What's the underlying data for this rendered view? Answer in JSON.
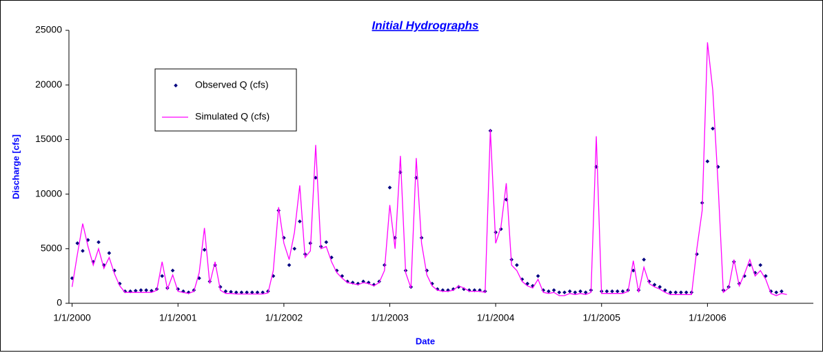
{
  "chart_data": {
    "type": "line",
    "title": "Initial Hydrographs",
    "x_label": "Date",
    "y_label": "Discharge [cfs]",
    "x": [
      2000.0,
      2000.05,
      2000.1,
      2000.15,
      2000.2,
      2000.25,
      2000.3,
      2000.35,
      2000.4,
      2000.45,
      2000.5,
      2000.55,
      2000.6,
      2000.65,
      2000.7,
      2000.75,
      2000.8,
      2000.85,
      2000.9,
      2000.95,
      2001.0,
      2001.05,
      2001.1,
      2001.15,
      2001.2,
      2001.25,
      2001.3,
      2001.35,
      2001.4,
      2001.45,
      2001.5,
      2001.55,
      2001.6,
      2001.65,
      2001.7,
      2001.75,
      2001.8,
      2001.85,
      2001.9,
      2001.95,
      2002.0,
      2002.05,
      2002.1,
      2002.15,
      2002.2,
      2002.25,
      2002.3,
      2002.35,
      2002.4,
      2002.45,
      2002.5,
      2002.55,
      2002.6,
      2002.65,
      2002.7,
      2002.75,
      2002.8,
      2002.85,
      2002.9,
      2002.95,
      2003.0,
      2003.05,
      2003.1,
      2003.15,
      2003.2,
      2003.25,
      2003.3,
      2003.35,
      2003.4,
      2003.45,
      2003.5,
      2003.55,
      2003.6,
      2003.65,
      2003.7,
      2003.75,
      2003.8,
      2003.85,
      2003.9,
      2003.95,
      2004.0,
      2004.05,
      2004.1,
      2004.15,
      2004.2,
      2004.25,
      2004.3,
      2004.35,
      2004.4,
      2004.45,
      2004.5,
      2004.55,
      2004.6,
      2004.65,
      2004.7,
      2004.75,
      2004.8,
      2004.85,
      2004.9,
      2004.95,
      2005.0,
      2005.05,
      2005.1,
      2005.15,
      2005.2,
      2005.25,
      2005.3,
      2005.35,
      2005.4,
      2005.45,
      2005.5,
      2005.55,
      2005.6,
      2005.65,
      2005.7,
      2005.75,
      2005.8,
      2005.85,
      2005.9,
      2005.95,
      2006.0,
      2006.05,
      2006.1,
      2006.15,
      2006.2,
      2006.25,
      2006.3,
      2006.35,
      2006.4,
      2006.45,
      2006.5,
      2006.55,
      2006.6,
      2006.65,
      2006.7,
      2006.75
    ],
    "series": [
      {
        "name": "Observed Q (cfs)",
        "color": "#000080",
        "style": "markers",
        "values": [
          2300,
          5500,
          4800,
          5800,
          3800,
          5600,
          3500,
          4600,
          3000,
          1800,
          1100,
          1100,
          1150,
          1200,
          1200,
          1150,
          1300,
          2500,
          1400,
          3000,
          1300,
          1100,
          1000,
          1200,
          2300,
          4900,
          2000,
          3500,
          1500,
          1100,
          1050,
          1000,
          1000,
          1000,
          1000,
          1000,
          1000,
          1100,
          2500,
          8500,
          6000,
          3500,
          5000,
          7500,
          4500,
          5500,
          11500,
          5200,
          5600,
          4200,
          3000,
          2500,
          2000,
          1900,
          1800,
          2000,
          1900,
          1700,
          2000,
          3500,
          10600,
          6000,
          12000,
          3000,
          1500,
          11500,
          6000,
          3000,
          1800,
          1300,
          1200,
          1200,
          1300,
          1500,
          1300,
          1200,
          1200,
          1200,
          1100,
          15800,
          6500,
          6800,
          9500,
          4000,
          3500,
          2200,
          1800,
          1600,
          2500,
          1200,
          1100,
          1200,
          1000,
          1000,
          1100,
          1000,
          1100,
          1000,
          1200,
          12500,
          1100,
          1100,
          1100,
          1100,
          1100,
          1200,
          3000,
          1200,
          4000,
          2000,
          1700,
          1500,
          1200,
          1000,
          1000,
          1000,
          1000,
          1000,
          4500,
          9200,
          13000,
          16000,
          12500,
          1200,
          1500,
          3800,
          1800,
          2500,
          3500,
          2800,
          3500,
          2500,
          1100,
          1000,
          1100,
          null
        ]
      },
      {
        "name": "Simulated Q (cfs)",
        "color": "#ff00ff",
        "style": "line",
        "values": [
          1500,
          4500,
          7300,
          5200,
          3500,
          5000,
          3200,
          4200,
          2700,
          1600,
          1000,
          1000,
          1000,
          1000,
          1000,
          1000,
          1200,
          3800,
          1300,
          2600,
          1100,
          1000,
          900,
          1100,
          2800,
          6900,
          1800,
          3800,
          1200,
          900,
          900,
          850,
          850,
          850,
          850,
          850,
          850,
          950,
          3000,
          8800,
          5500,
          4000,
          6500,
          10800,
          4200,
          4800,
          14500,
          5000,
          5200,
          3800,
          2800,
          2300,
          1900,
          1800,
          1700,
          1900,
          1800,
          1600,
          1900,
          3000,
          9000,
          5000,
          13500,
          2800,
          1400,
          13300,
          5500,
          2600,
          1600,
          1200,
          1100,
          1100,
          1200,
          1600,
          1400,
          1100,
          1100,
          1100,
          1000,
          15900,
          5500,
          7000,
          11000,
          3500,
          3000,
          2000,
          1600,
          1400,
          2200,
          1000,
          900,
          1000,
          700,
          700,
          900,
          800,
          900,
          800,
          1000,
          15300,
          900,
          900,
          900,
          900,
          900,
          1100,
          3900,
          1000,
          3300,
          1800,
          1500,
          1300,
          1000,
          800,
          800,
          800,
          800,
          800,
          5000,
          8500,
          23900,
          19500,
          11000,
          1000,
          1400,
          4000,
          1600,
          2700,
          4000,
          2500,
          3000,
          2200,
          900,
          700,
          900,
          800
        ]
      }
    ],
    "xlim": [
      1999.97,
      2007.0
    ],
    "xticks": [
      {
        "value": 2000,
        "label": "1/1/2000"
      },
      {
        "value": 2001,
        "label": "1/1/2001"
      },
      {
        "value": 2002,
        "label": "1/1/2002"
      },
      {
        "value": 2003,
        "label": "1/1/2003"
      },
      {
        "value": 2004,
        "label": "1/1/2004"
      },
      {
        "value": 2005,
        "label": "1/1/2005"
      },
      {
        "value": 2006,
        "label": "1/1/2006"
      }
    ],
    "ylim": [
      0,
      25000
    ],
    "yticks": [
      0,
      5000,
      10000,
      15000,
      20000,
      25000
    ],
    "legend": "upper left",
    "grid": false
  }
}
